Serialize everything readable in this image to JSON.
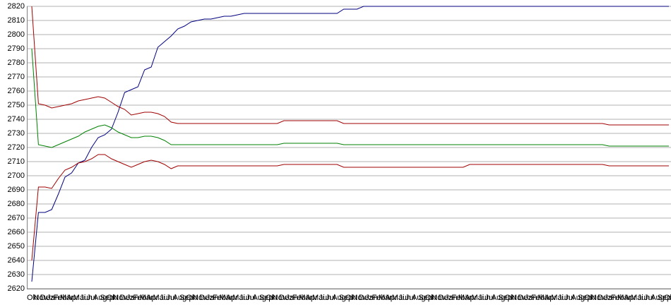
{
  "chart_data": {
    "type": "line",
    "categories": [
      "Okt",
      "Nov",
      "Dez",
      "Jan",
      "Feb",
      "Mär",
      "Apr",
      "Mai",
      "Jun",
      "Jul",
      "Aug",
      "Sep",
      "Okt",
      "Nov",
      "Dez",
      "Jan",
      "Feb",
      "Mär",
      "Apr",
      "Mai",
      "Jun",
      "Jul",
      "Aug",
      "Sep",
      "Okt",
      "Nov",
      "Dez",
      "Jan",
      "Feb",
      "Mär",
      "Apr",
      "Mai",
      "Jun",
      "Jul",
      "Aug",
      "Sep",
      "Okt",
      "Nov",
      "Dez",
      "Jan",
      "Feb",
      "Mär",
      "Apr",
      "Mai",
      "Jun",
      "Jul",
      "Aug",
      "Sep",
      "Okt",
      "Nov",
      "Dez",
      "Jan",
      "Feb",
      "Mär",
      "Apr",
      "Mai",
      "Jun",
      "Jul",
      "Aug",
      "Sep",
      "Okt",
      "Nov",
      "Dez",
      "Jan",
      "Feb",
      "Mär",
      "Apr",
      "Mai",
      "Jun",
      "Jul",
      "Aug",
      "Sep",
      "Okt",
      "Nov",
      "Dez",
      "Jan",
      "Feb",
      "Mär",
      "Apr",
      "Mai",
      "Jun",
      "Jul",
      "Aug",
      "Sep",
      "Okt",
      "Nov",
      "Dez",
      "Jan",
      "Feb",
      "Mär",
      "Apr",
      "Mai",
      "Jun",
      "Jul",
      "Aug",
      "Sep",
      "Okt"
    ],
    "series": [
      {
        "color": "#000080",
        "values": [
          2625,
          2674,
          2674,
          2676,
          2687,
          2699,
          2702,
          2709,
          2711,
          2720,
          2727,
          2729,
          2733,
          2745,
          2759,
          2761,
          2763,
          2775,
          2777,
          2791,
          2795,
          2799,
          2804,
          2806,
          2809,
          2810,
          2811,
          2811,
          2812,
          2813,
          2813,
          2814,
          2815,
          2815,
          2815,
          2815,
          2815,
          2815,
          2815,
          2815,
          2815,
          2815,
          2815,
          2815,
          2815,
          2815,
          2815,
          2818,
          2818,
          2818,
          2820,
          2820,
          2820,
          2820,
          2820,
          2820,
          2820,
          2820,
          2820,
          2820,
          2820,
          2820,
          2820,
          2820,
          2820,
          2820,
          2820,
          2820,
          2820,
          2820,
          2820,
          2820,
          2820,
          2820,
          2820,
          2820,
          2820,
          2820,
          2820,
          2820,
          2820,
          2820,
          2820,
          2820,
          2820,
          2820,
          2820,
          2820,
          2820,
          2820,
          2820,
          2820,
          2820,
          2820,
          2820,
          2820,
          2820
        ]
      },
      {
        "color": "#a00000",
        "values": [
          2820,
          2751,
          2750,
          2748,
          2749,
          2750,
          2751,
          2753,
          2754,
          2755,
          2756,
          2755,
          2752,
          2749,
          2747,
          2743,
          2744,
          2745,
          2745,
          2744,
          2742,
          2738,
          2737,
          2737,
          2737,
          2737,
          2737,
          2737,
          2737,
          2737,
          2737,
          2737,
          2737,
          2737,
          2737,
          2737,
          2737,
          2737,
          2739,
          2739,
          2739,
          2739,
          2739,
          2739,
          2739,
          2739,
          2739,
          2737,
          2737,
          2737,
          2737,
          2737,
          2737,
          2737,
          2737,
          2737,
          2737,
          2737,
          2737,
          2737,
          2737,
          2737,
          2737,
          2737,
          2737,
          2737,
          2737,
          2737,
          2737,
          2737,
          2737,
          2737,
          2737,
          2737,
          2737,
          2737,
          2737,
          2737,
          2737,
          2737,
          2737,
          2737,
          2737,
          2737,
          2737,
          2737,
          2737,
          2736,
          2736,
          2736,
          2736,
          2736,
          2736,
          2736,
          2736,
          2736,
          2736
        ]
      },
      {
        "color": "#008000",
        "values": [
          2790,
          2722,
          2721,
          2720,
          2722,
          2724,
          2726,
          2728,
          2731,
          2733,
          2735,
          2736,
          2734,
          2731,
          2729,
          2727,
          2727,
          2728,
          2728,
          2727,
          2725,
          2722,
          2722,
          2722,
          2722,
          2722,
          2722,
          2722,
          2722,
          2722,
          2722,
          2722,
          2722,
          2722,
          2722,
          2722,
          2722,
          2722,
          2723,
          2723,
          2723,
          2723,
          2723,
          2723,
          2723,
          2723,
          2723,
          2722,
          2722,
          2722,
          2722,
          2722,
          2722,
          2722,
          2722,
          2722,
          2722,
          2722,
          2722,
          2722,
          2722,
          2722,
          2722,
          2722,
          2722,
          2722,
          2722,
          2722,
          2722,
          2722,
          2722,
          2722,
          2722,
          2722,
          2722,
          2722,
          2722,
          2722,
          2722,
          2722,
          2722,
          2722,
          2722,
          2722,
          2722,
          2722,
          2722,
          2721,
          2721,
          2721,
          2721,
          2721,
          2721,
          2721,
          2721,
          2721,
          2721
        ]
      },
      {
        "color": "#a00000",
        "values": [
          2640,
          2692,
          2692,
          2691,
          2698,
          2704,
          2706,
          2709,
          2710,
          2712,
          2715,
          2715,
          2712,
          2710,
          2708,
          2706,
          2708,
          2710,
          2711,
          2710,
          2708,
          2705,
          2707,
          2707,
          2707,
          2707,
          2707,
          2707,
          2707,
          2707,
          2707,
          2707,
          2707,
          2707,
          2707,
          2707,
          2707,
          2707,
          2708,
          2708,
          2708,
          2708,
          2708,
          2708,
          2708,
          2708,
          2708,
          2706,
          2706,
          2706,
          2706,
          2706,
          2706,
          2706,
          2706,
          2706,
          2706,
          2706,
          2706,
          2706,
          2706,
          2706,
          2706,
          2706,
          2706,
          2706,
          2708,
          2708,
          2708,
          2708,
          2708,
          2708,
          2708,
          2708,
          2708,
          2708,
          2708,
          2708,
          2708,
          2708,
          2708,
          2708,
          2708,
          2708,
          2708,
          2708,
          2708,
          2707,
          2707,
          2707,
          2707,
          2707,
          2707,
          2707,
          2707,
          2707,
          2707
        ]
      }
    ],
    "ylim": [
      2620,
      2820
    ],
    "yticks": [
      2620,
      2630,
      2640,
      2650,
      2660,
      2670,
      2680,
      2690,
      2700,
      2710,
      2720,
      2730,
      2740,
      2750,
      2760,
      2770,
      2780,
      2790,
      2800,
      2810,
      2820
    ],
    "grid": true
  }
}
